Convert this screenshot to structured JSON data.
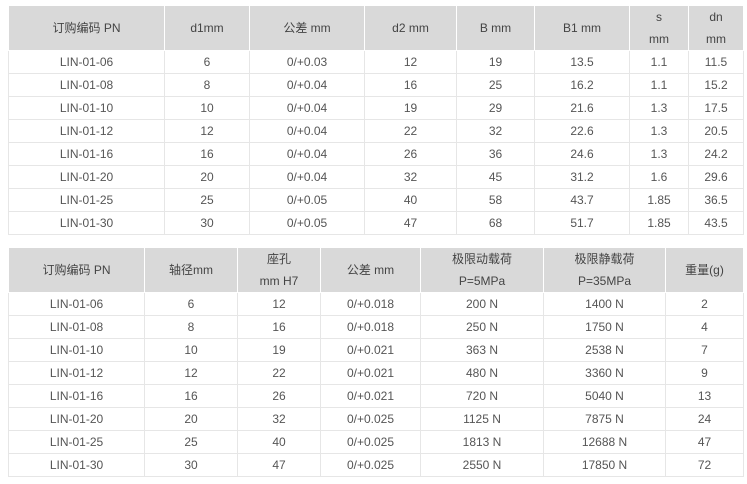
{
  "table1": {
    "headers": [
      "订购编码 PN",
      "d1mm",
      "公差 mm",
      "d2 mm",
      "B mm",
      "B1 mm",
      "s\nmm",
      "dn\nmm"
    ],
    "rows": [
      [
        "LIN-01-06",
        "6",
        "0/+0.03",
        "12",
        "19",
        "13.5",
        "1.1",
        "11.5"
      ],
      [
        "LIN-01-08",
        "8",
        "0/+0.04",
        "16",
        "25",
        "16.2",
        "1.1",
        "15.2"
      ],
      [
        "LIN-01-10",
        "10",
        "0/+0.04",
        "19",
        "29",
        "21.6",
        "1.3",
        "17.5"
      ],
      [
        "LIN-01-12",
        "12",
        "0/+0.04",
        "22",
        "32",
        "22.6",
        "1.3",
        "20.5"
      ],
      [
        "LIN-01-16",
        "16",
        "0/+0.04",
        "26",
        "36",
        "24.6",
        "1.3",
        "24.2"
      ],
      [
        "LIN-01-20",
        "20",
        "0/+0.04",
        "32",
        "45",
        "31.2",
        "1.6",
        "29.6"
      ],
      [
        "LIN-01-25",
        "25",
        "0/+0.05",
        "40",
        "58",
        "43.7",
        "1.85",
        "36.5"
      ],
      [
        "LIN-01-30",
        "30",
        "0/+0.05",
        "47",
        "68",
        "51.7",
        "1.85",
        "43.5"
      ]
    ]
  },
  "table2": {
    "headers": [
      "订购编码 PN",
      "轴径mm",
      "座孔\nmm H7",
      "公差 mm",
      "极限动载荷\nP=5MPa",
      "极限静载荷\nP=35MPa",
      "重量(g)"
    ],
    "rows": [
      [
        "LIN-01-06",
        "6",
        "12",
        "0/+0.018",
        "200 N",
        "1400 N",
        "2"
      ],
      [
        "LIN-01-08",
        "8",
        "16",
        "0/+0.018",
        "250 N",
        "1750 N",
        "4"
      ],
      [
        "LIN-01-10",
        "10",
        "19",
        "0/+0.021",
        "363 N",
        "2538 N",
        "7"
      ],
      [
        "LIN-01-12",
        "12",
        "22",
        "0/+0.021",
        "480 N",
        "3360 N",
        "9"
      ],
      [
        "LIN-01-16",
        "16",
        "26",
        "0/+0.021",
        "720 N",
        "5040 N",
        "13"
      ],
      [
        "LIN-01-20",
        "20",
        "32",
        "0/+0.025",
        "1125 N",
        "7875 N",
        "24"
      ],
      [
        "LIN-01-25",
        "25",
        "40",
        "0/+0.025",
        "1813 N",
        "12688 N",
        "47"
      ],
      [
        "LIN-01-30",
        "30",
        "47",
        "0/+0.025",
        "2550 N",
        "17850 N",
        "72"
      ]
    ]
  }
}
